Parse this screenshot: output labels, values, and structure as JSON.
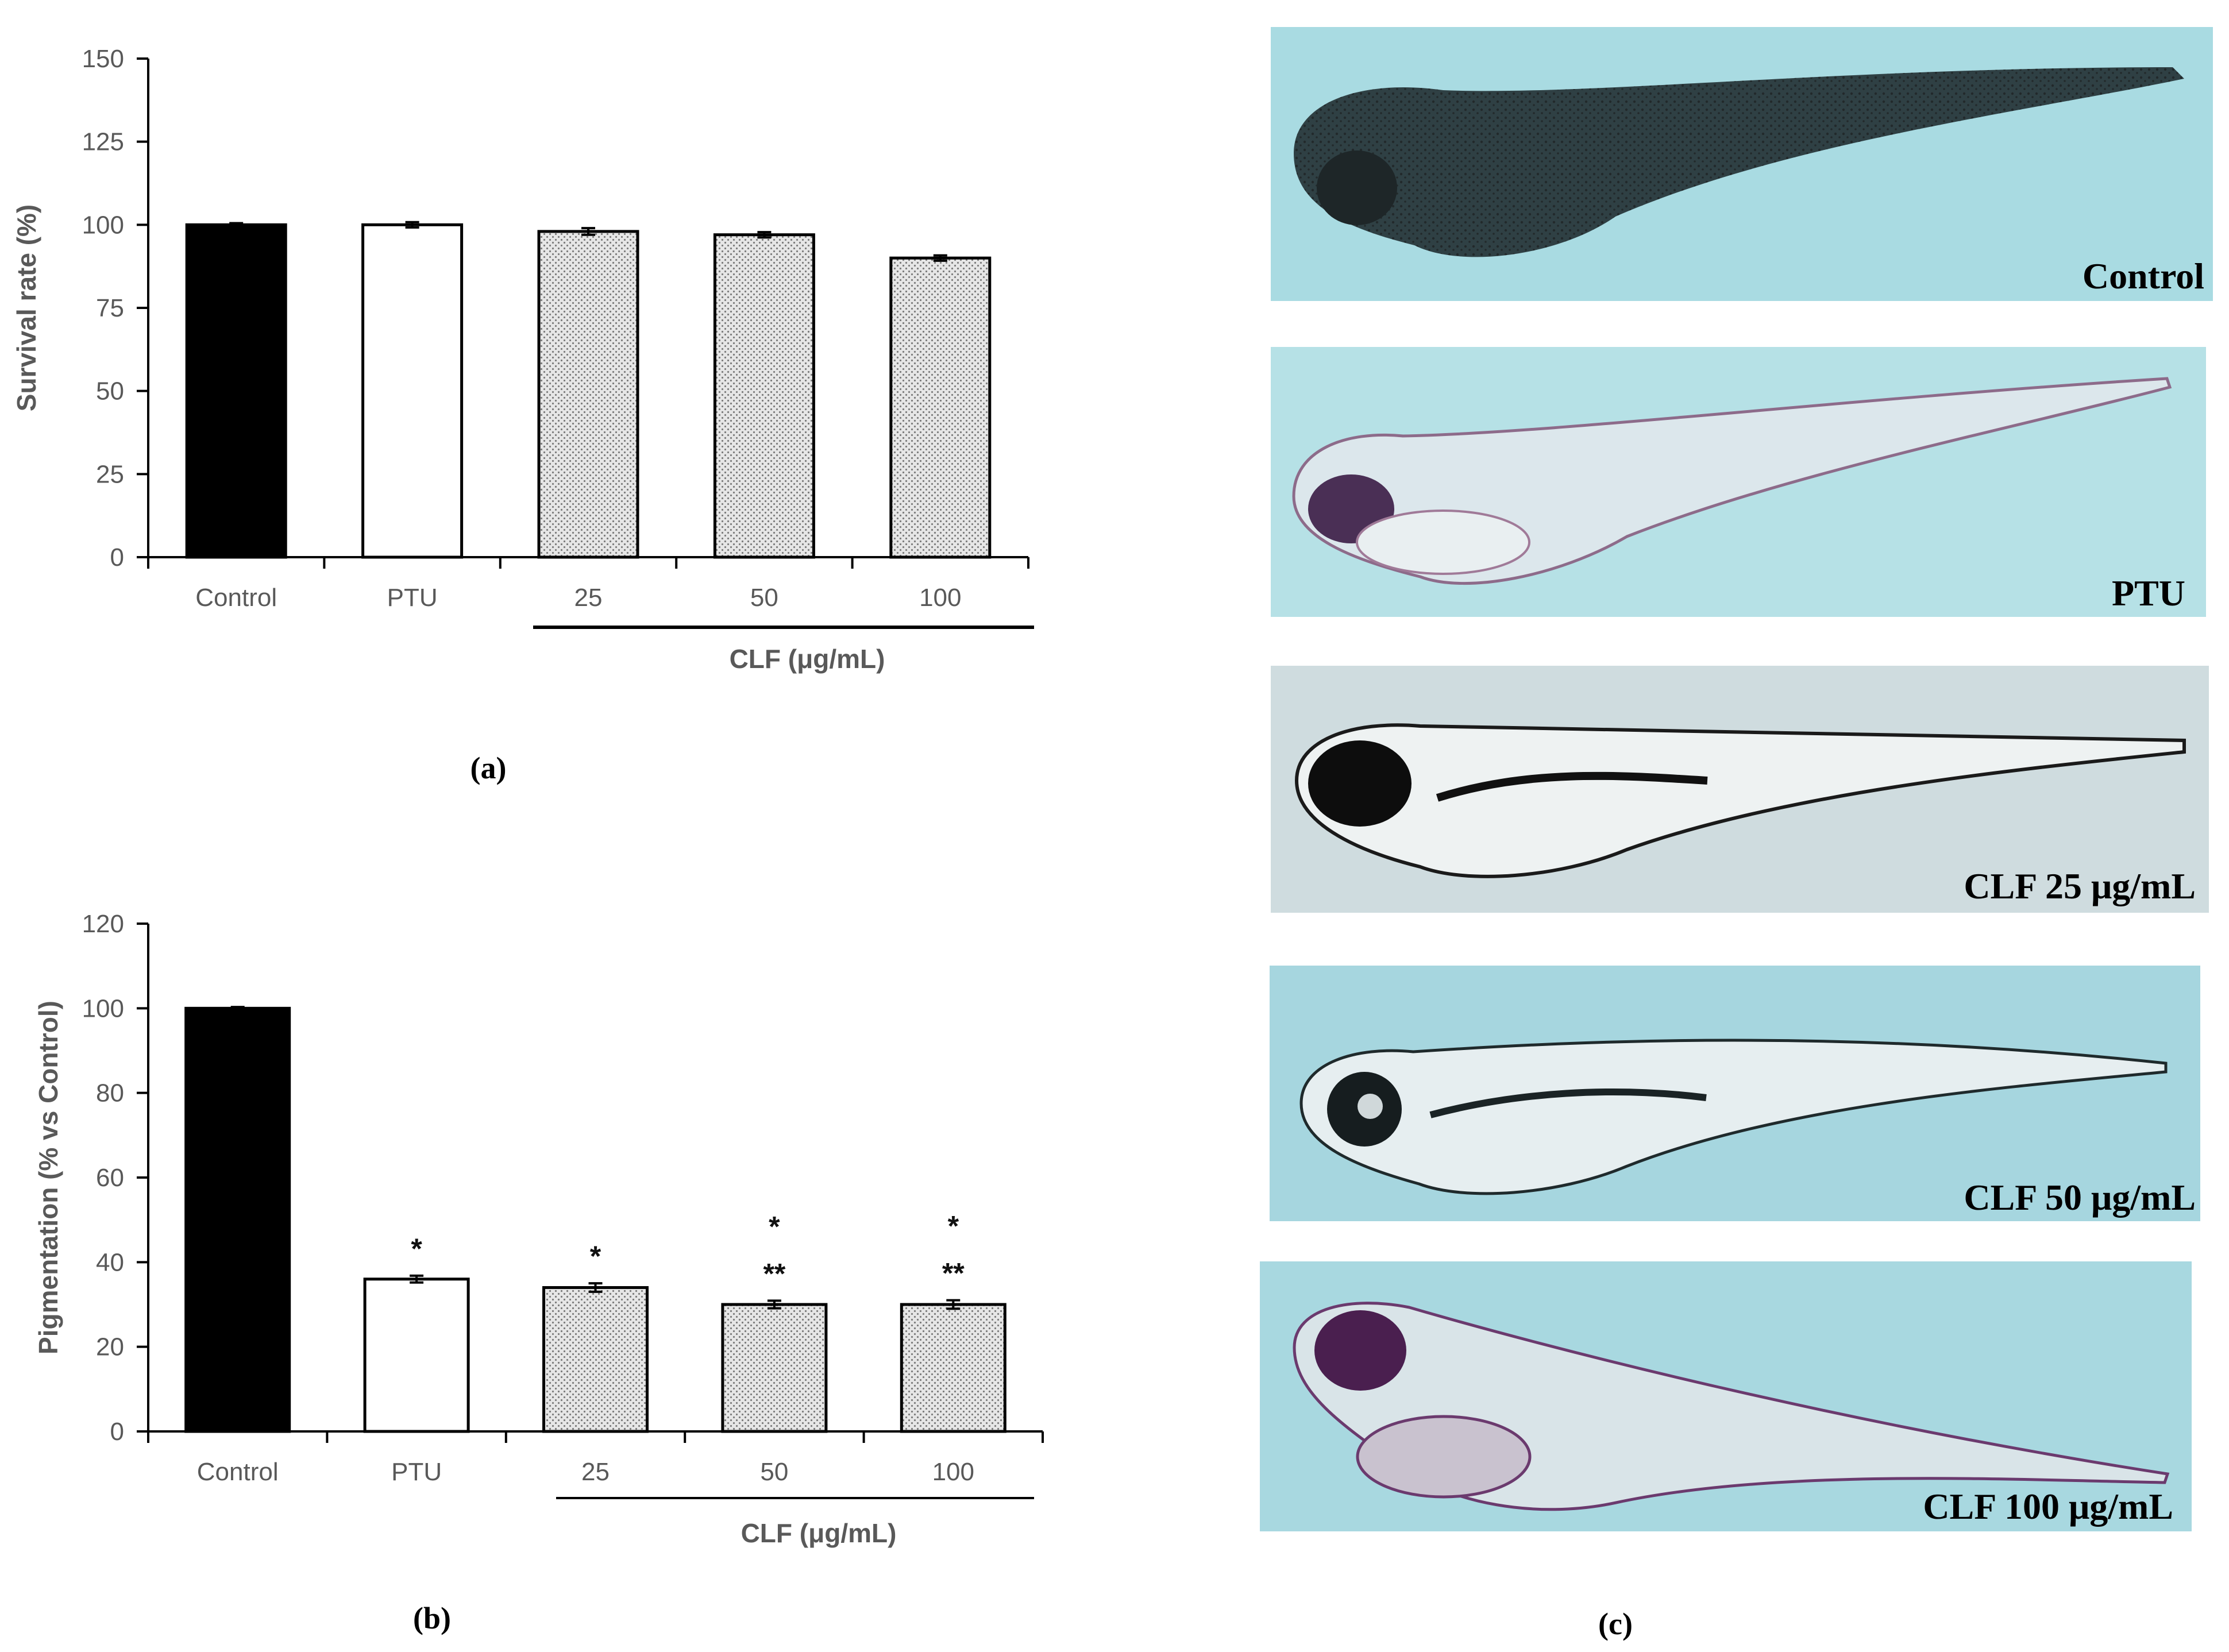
{
  "colors": {
    "control_bar": "#000000",
    "ptu_bar": "#ffffff",
    "clf_bar": "#e4e4e4",
    "axis": "#000000",
    "tick_text": "#595959",
    "photo_background": "#b4e2e8"
  },
  "panel_a": {
    "caption": "(a)",
    "group_label": "CLF (μg/mL)"
  },
  "panel_b": {
    "caption": "(b)",
    "group_label": "CLF (μg/mL)"
  },
  "panel_c": {
    "caption": "(c)",
    "photos": [
      {
        "label": "Control",
        "icon": "zebrafish-larva-dark-pigmented"
      },
      {
        "label": "PTU",
        "icon": "zebrafish-larva-depigmented"
      },
      {
        "label": "CLF 25 μg/mL",
        "icon": "zebrafish-larva-reduced-pigment"
      },
      {
        "label": "CLF 50 μg/mL",
        "icon": "zebrafish-larva-reduced-pigment"
      },
      {
        "label": "CLF 100 μg/mL",
        "icon": "zebrafish-larva-reduced-pigment"
      }
    ]
  },
  "chart_data": [
    {
      "type": "bar",
      "categories": [
        "Control",
        "PTU",
        "25",
        "50",
        "100"
      ],
      "values": [
        100,
        100,
        98,
        97,
        90
      ],
      "errors": [
        0.5,
        0.8,
        1.0,
        0.8,
        0.8
      ],
      "ylabel": "Survival rate (%)",
      "xlabel": "CLF (μg/mL)",
      "ylim": [
        0,
        150
      ],
      "yticks": [
        0,
        25,
        50,
        75,
        100,
        125,
        150
      ],
      "bar_styles": [
        "solid-black",
        "white",
        "dotted",
        "dotted",
        "dotted"
      ],
      "significance": [
        "",
        "",
        "",
        "",
        ""
      ],
      "grid": false
    },
    {
      "type": "bar",
      "categories": [
        "Control",
        "PTU",
        "25",
        "50",
        "100"
      ],
      "values": [
        100,
        36,
        34,
        30,
        30
      ],
      "errors": [
        0.3,
        0.8,
        1.0,
        0.9,
        1.0
      ],
      "ylabel": "Pigmentation (% vs Control)",
      "xlabel": "CLF (μg/mL)",
      "ylim": [
        0,
        120
      ],
      "yticks": [
        0,
        20,
        40,
        60,
        80,
        100,
        120
      ],
      "bar_styles": [
        "solid-black",
        "white",
        "dotted",
        "dotted",
        "dotted"
      ],
      "significance": [
        "",
        "*",
        "*",
        "*\n**",
        "*\n**"
      ],
      "grid": false
    }
  ]
}
